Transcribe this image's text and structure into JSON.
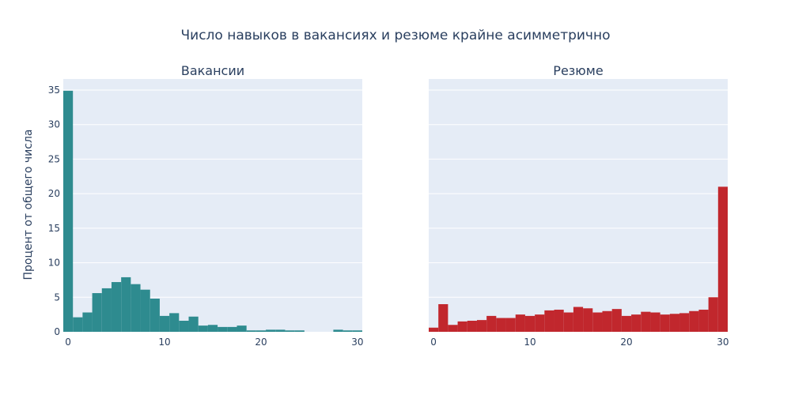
{
  "chart_data": {
    "title": "Число навыков в вакансиях и резюме крайне асимметрично",
    "ylabel": "Процент от общего числа",
    "ylim": [
      0,
      36.6
    ],
    "yticks": [
      0,
      5,
      10,
      15,
      20,
      25,
      30,
      35
    ],
    "xlim": [
      -0.5,
      30.5
    ],
    "xticks": [
      0,
      10,
      20,
      30
    ],
    "panels": [
      {
        "type": "bar",
        "title": "Вакансии",
        "color": "#2e8b8f",
        "categories": [
          0,
          1,
          2,
          3,
          4,
          5,
          6,
          7,
          8,
          9,
          10,
          11,
          12,
          13,
          14,
          15,
          16,
          17,
          18,
          19,
          20,
          21,
          22,
          23,
          24,
          25,
          26,
          27,
          28,
          29,
          30
        ],
        "values": [
          34.9,
          2.1,
          2.8,
          5.6,
          6.3,
          7.2,
          7.9,
          6.9,
          6.1,
          4.8,
          2.3,
          2.7,
          1.6,
          2.2,
          0.9,
          1.0,
          0.7,
          0.7,
          0.9,
          0.2,
          0.2,
          0.3,
          0.3,
          0.2,
          0.2,
          0.0,
          0.0,
          0.0,
          0.3,
          0.2,
          0.2
        ]
      },
      {
        "type": "bar",
        "title": "Резюме",
        "color": "#c1272d",
        "categories": [
          0,
          1,
          2,
          3,
          4,
          5,
          6,
          7,
          8,
          9,
          10,
          11,
          12,
          13,
          14,
          15,
          16,
          17,
          18,
          19,
          20,
          21,
          22,
          23,
          24,
          25,
          26,
          27,
          28,
          29,
          30
        ],
        "values": [
          0.6,
          4.0,
          1.0,
          1.5,
          1.6,
          1.7,
          2.3,
          2.0,
          2.0,
          2.5,
          2.3,
          2.5,
          3.1,
          3.2,
          2.8,
          3.6,
          3.4,
          2.8,
          3.0,
          3.3,
          2.3,
          2.5,
          2.9,
          2.8,
          2.5,
          2.6,
          2.7,
          3.0,
          3.2,
          5.0,
          21.0
        ]
      }
    ]
  }
}
